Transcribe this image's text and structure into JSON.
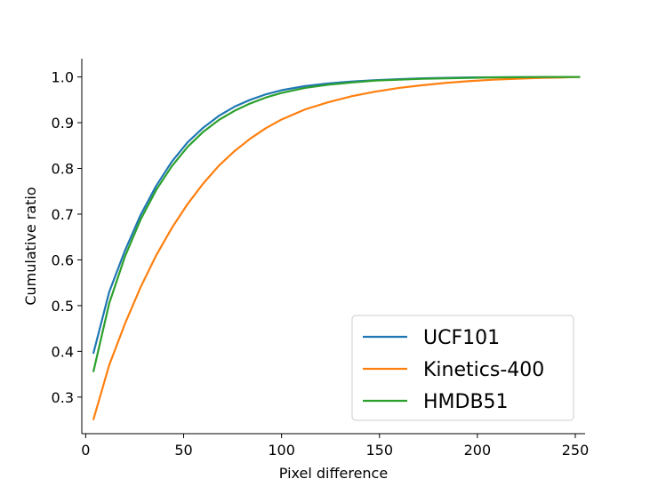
{
  "chart_data": {
    "type": "line",
    "title": "",
    "xlabel": "Pixel difference",
    "ylabel": "Cumulative ratio",
    "xlim": [
      -2,
      255
    ],
    "ylim": [
      0.22,
      1.04
    ],
    "xticks": [
      0,
      50,
      100,
      150,
      200,
      250
    ],
    "yticks": [
      0.3,
      0.4,
      0.5,
      0.6,
      0.7,
      0.8,
      0.9,
      1.0
    ],
    "xtick_labels": [
      "0",
      "50",
      "100",
      "150",
      "200",
      "250"
    ],
    "ytick_labels": [
      "0.3",
      "0.4",
      "0.5",
      "0.6",
      "0.7",
      "0.8",
      "0.9",
      "1.0"
    ],
    "grid": false,
    "legend_position": "lower-right",
    "x": [
      4,
      12,
      20,
      28,
      36,
      44,
      52,
      60,
      68,
      76,
      84,
      92,
      100,
      112,
      124,
      136,
      148,
      160,
      172,
      184,
      196,
      208,
      220,
      232,
      244,
      252
    ],
    "series": [
      {
        "name": "UCF101",
        "color": "#1f77b4",
        "values": [
          0.397,
          0.53,
          0.62,
          0.698,
          0.762,
          0.815,
          0.857,
          0.889,
          0.915,
          0.935,
          0.95,
          0.962,
          0.971,
          0.98,
          0.986,
          0.99,
          0.993,
          0.995,
          0.997,
          0.998,
          0.999,
          0.9993,
          0.9996,
          0.9998,
          0.9999,
          1.0
        ]
      },
      {
        "name": "Kinetics-400",
        "color": "#ff7f0e",
        "values": [
          0.252,
          0.37,
          0.46,
          0.54,
          0.61,
          0.67,
          0.722,
          0.767,
          0.806,
          0.838,
          0.865,
          0.888,
          0.907,
          0.929,
          0.945,
          0.958,
          0.968,
          0.976,
          0.982,
          0.987,
          0.991,
          0.994,
          0.996,
          0.998,
          0.999,
          1.0
        ]
      },
      {
        "name": "HMDB51",
        "color": "#2ca02c",
        "values": [
          0.357,
          0.505,
          0.607,
          0.688,
          0.753,
          0.805,
          0.847,
          0.88,
          0.906,
          0.926,
          0.942,
          0.955,
          0.965,
          0.976,
          0.983,
          0.988,
          0.992,
          0.994,
          0.996,
          0.997,
          0.998,
          0.999,
          0.9995,
          0.9998,
          0.9999,
          1.0
        ]
      }
    ]
  }
}
